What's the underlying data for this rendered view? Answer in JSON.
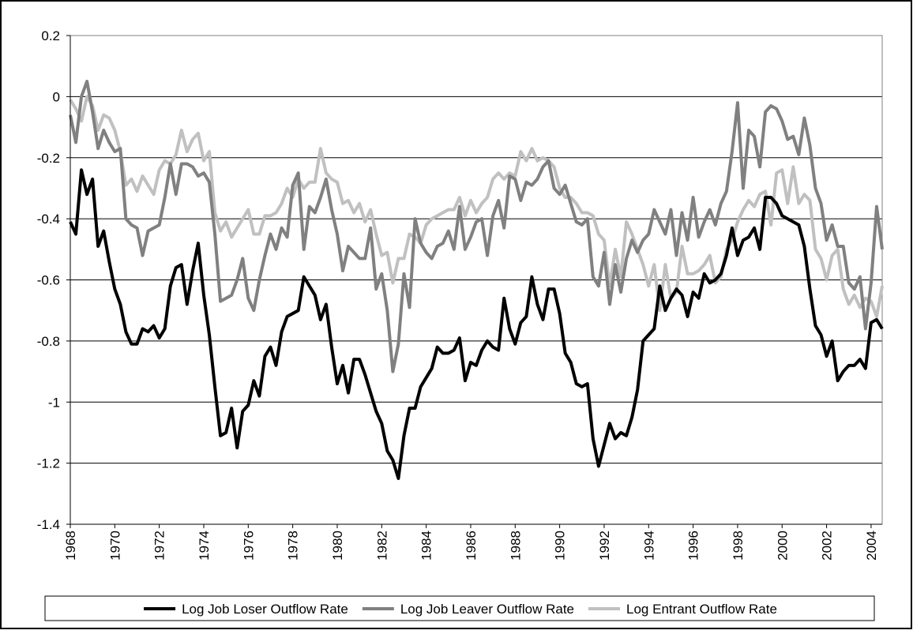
{
  "chart_data": {
    "type": "line",
    "x": [
      1968,
      1968.25,
      1968.5,
      1968.75,
      1969,
      1969.25,
      1969.5,
      1969.75,
      1970,
      1970.25,
      1970.5,
      1970.75,
      1971,
      1971.25,
      1971.5,
      1971.75,
      1972,
      1972.25,
      1972.5,
      1972.75,
      1973,
      1973.25,
      1973.5,
      1973.75,
      1974,
      1974.25,
      1974.5,
      1974.75,
      1975,
      1975.25,
      1975.5,
      1975.75,
      1976,
      1976.25,
      1976.5,
      1976.75,
      1977,
      1977.25,
      1977.5,
      1977.75,
      1978,
      1978.25,
      1978.5,
      1978.75,
      1979,
      1979.25,
      1979.5,
      1979.75,
      1980,
      1980.25,
      1980.5,
      1980.75,
      1981,
      1981.25,
      1981.5,
      1981.75,
      1982,
      1982.25,
      1982.5,
      1982.75,
      1983,
      1983.25,
      1983.5,
      1983.75,
      1984,
      1984.25,
      1984.5,
      1984.75,
      1985,
      1985.25,
      1985.5,
      1985.75,
      1986,
      1986.25,
      1986.5,
      1986.75,
      1987,
      1987.25,
      1987.5,
      1987.75,
      1988,
      1988.25,
      1988.5,
      1988.75,
      1989,
      1989.25,
      1989.5,
      1989.75,
      1990,
      1990.25,
      1990.5,
      1990.75,
      1991,
      1991.25,
      1991.5,
      1991.75,
      1992,
      1992.25,
      1992.5,
      1992.75,
      1993,
      1993.25,
      1993.5,
      1993.75,
      1994,
      1994.25,
      1994.5,
      1994.75,
      1995,
      1995.25,
      1995.5,
      1995.75,
      1996,
      1996.25,
      1996.5,
      1996.75,
      1997,
      1997.25,
      1997.5,
      1997.75,
      1998,
      1998.25,
      1998.5,
      1998.75,
      1999,
      1999.25,
      1999.5,
      1999.75,
      2000,
      2000.25,
      2000.5,
      2000.75,
      2001,
      2001.25,
      2001.5,
      2001.75,
      2002,
      2002.25,
      2002.5,
      2002.75,
      2003,
      2003.25,
      2003.5,
      2003.75,
      2004,
      2004.25,
      2004.5
    ],
    "series": [
      {
        "name": "Log Job Loser Outflow Rate",
        "color": "#000000",
        "values": [
          -0.41,
          -0.45,
          -0.24,
          -0.32,
          -0.27,
          -0.49,
          -0.44,
          -0.54,
          -0.63,
          -0.68,
          -0.77,
          -0.81,
          -0.81,
          -0.76,
          -0.77,
          -0.75,
          -0.79,
          -0.76,
          -0.62,
          -0.56,
          -0.55,
          -0.68,
          -0.57,
          -0.48,
          -0.65,
          -0.78,
          -0.95,
          -1.11,
          -1.1,
          -1.02,
          -1.15,
          -1.03,
          -1.01,
          -0.93,
          -0.98,
          -0.85,
          -0.82,
          -0.88,
          -0.77,
          -0.72,
          -0.71,
          -0.7,
          -0.59,
          -0.62,
          -0.65,
          -0.73,
          -0.68,
          -0.82,
          -0.94,
          -0.88,
          -0.97,
          -0.86,
          -0.86,
          -0.91,
          -0.97,
          -1.03,
          -1.07,
          -1.16,
          -1.19,
          -1.25,
          -1.11,
          -1.02,
          -1.02,
          -0.95,
          -0.92,
          -0.89,
          -0.82,
          -0.84,
          -0.84,
          -0.83,
          -0.79,
          -0.93,
          -0.87,
          -0.88,
          -0.83,
          -0.8,
          -0.82,
          -0.83,
          -0.66,
          -0.76,
          -0.81,
          -0.74,
          -0.72,
          -0.59,
          -0.68,
          -0.73,
          -0.63,
          -0.63,
          -0.71,
          -0.84,
          -0.87,
          -0.94,
          -0.95,
          -0.94,
          -1.12,
          -1.21,
          -1.14,
          -1.07,
          -1.12,
          -1.1,
          -1.11,
          -1.05,
          -0.96,
          -0.8,
          -0.78,
          -0.76,
          -0.62,
          -0.7,
          -0.66,
          -0.63,
          -0.65,
          -0.72,
          -0.64,
          -0.66,
          -0.58,
          -0.61,
          -0.6,
          -0.58,
          -0.52,
          -0.43,
          -0.52,
          -0.47,
          -0.46,
          -0.43,
          -0.5,
          -0.33,
          -0.33,
          -0.35,
          -0.39,
          -0.4,
          -0.41,
          -0.42,
          -0.49,
          -0.63,
          -0.75,
          -0.78,
          -0.85,
          -0.8,
          -0.93,
          -0.9,
          -0.88,
          -0.88,
          -0.86,
          -0.89,
          -0.74,
          -0.73,
          -0.76
        ]
      },
      {
        "name": "Log Job Leaver Outflow Rate",
        "color": "#808080",
        "values": [
          -0.06,
          -0.15,
          0.0,
          0.05,
          -0.05,
          -0.17,
          -0.11,
          -0.15,
          -0.18,
          -0.17,
          -0.4,
          -0.42,
          -0.43,
          -0.52,
          -0.44,
          -0.43,
          -0.42,
          -0.33,
          -0.22,
          -0.32,
          -0.22,
          -0.22,
          -0.23,
          -0.26,
          -0.25,
          -0.28,
          -0.45,
          -0.67,
          -0.66,
          -0.65,
          -0.6,
          -0.53,
          -0.66,
          -0.7,
          -0.6,
          -0.52,
          -0.45,
          -0.5,
          -0.43,
          -0.46,
          -0.29,
          -0.25,
          -0.5,
          -0.36,
          -0.38,
          -0.33,
          -0.27,
          -0.37,
          -0.45,
          -0.57,
          -0.49,
          -0.51,
          -0.53,
          -0.53,
          -0.43,
          -0.63,
          -0.58,
          -0.7,
          -0.9,
          -0.81,
          -0.58,
          -0.69,
          -0.4,
          -0.48,
          -0.51,
          -0.53,
          -0.49,
          -0.48,
          -0.44,
          -0.5,
          -0.36,
          -0.5,
          -0.46,
          -0.41,
          -0.4,
          -0.52,
          -0.39,
          -0.34,
          -0.43,
          -0.26,
          -0.27,
          -0.34,
          -0.28,
          -0.29,
          -0.27,
          -0.23,
          -0.21,
          -0.3,
          -0.32,
          -0.29,
          -0.35,
          -0.41,
          -0.42,
          -0.4,
          -0.59,
          -0.62,
          -0.51,
          -0.68,
          -0.55,
          -0.64,
          -0.53,
          -0.47,
          -0.51,
          -0.47,
          -0.45,
          -0.37,
          -0.41,
          -0.45,
          -0.37,
          -0.52,
          -0.38,
          -0.47,
          -0.33,
          -0.46,
          -0.41,
          -0.37,
          -0.42,
          -0.35,
          -0.31,
          -0.18,
          -0.02,
          -0.3,
          -0.11,
          -0.13,
          -0.23,
          -0.05,
          -0.03,
          -0.04,
          -0.08,
          -0.14,
          -0.13,
          -0.19,
          -0.07,
          -0.16,
          -0.3,
          -0.35,
          -0.47,
          -0.42,
          -0.49,
          -0.49,
          -0.61,
          -0.63,
          -0.59,
          -0.76,
          -0.61,
          -0.36,
          -0.5
        ]
      },
      {
        "name": "Log Entrant Outflow Rate",
        "color": "#c0c0c0",
        "values": [
          -0.01,
          -0.04,
          -0.08,
          0.0,
          -0.03,
          -0.11,
          -0.06,
          -0.07,
          -0.11,
          -0.18,
          -0.29,
          -0.27,
          -0.31,
          -0.26,
          -0.29,
          -0.32,
          -0.24,
          -0.21,
          -0.22,
          -0.19,
          -0.11,
          -0.18,
          -0.14,
          -0.12,
          -0.21,
          -0.18,
          -0.38,
          -0.44,
          -0.41,
          -0.46,
          -0.43,
          -0.4,
          -0.37,
          -0.45,
          -0.45,
          -0.39,
          -0.39,
          -0.38,
          -0.35,
          -0.3,
          -0.33,
          -0.27,
          -0.3,
          -0.28,
          -0.28,
          -0.17,
          -0.25,
          -0.27,
          -0.28,
          -0.35,
          -0.34,
          -0.38,
          -0.35,
          -0.41,
          -0.37,
          -0.45,
          -0.52,
          -0.51,
          -0.61,
          -0.53,
          -0.53,
          -0.45,
          -0.46,
          -0.48,
          -0.42,
          -0.4,
          -0.39,
          -0.38,
          -0.37,
          -0.37,
          -0.33,
          -0.39,
          -0.34,
          -0.38,
          -0.35,
          -0.33,
          -0.27,
          -0.25,
          -0.27,
          -0.25,
          -0.26,
          -0.18,
          -0.21,
          -0.17,
          -0.21,
          -0.2,
          -0.21,
          -0.23,
          -0.3,
          -0.33,
          -0.33,
          -0.35,
          -0.38,
          -0.38,
          -0.39,
          -0.45,
          -0.47,
          -0.62,
          -0.5,
          -0.59,
          -0.41,
          -0.45,
          -0.5,
          -0.55,
          -0.62,
          -0.55,
          -0.7,
          -0.55,
          -0.66,
          -0.64,
          -0.49,
          -0.58,
          -0.58,
          -0.57,
          -0.55,
          -0.52,
          -0.61,
          -0.59,
          -0.5,
          -0.47,
          -0.41,
          -0.37,
          -0.34,
          -0.36,
          -0.32,
          -0.31,
          -0.42,
          -0.25,
          -0.24,
          -0.35,
          -0.23,
          -0.35,
          -0.32,
          -0.34,
          -0.5,
          -0.53,
          -0.6,
          -0.52,
          -0.5,
          -0.63,
          -0.68,
          -0.65,
          -0.69,
          -0.66,
          -0.67,
          -0.72,
          -0.62
        ]
      }
    ],
    "xlim": [
      1968,
      2004.5
    ],
    "xticks": [
      1968,
      1970,
      1972,
      1974,
      1976,
      1978,
      1980,
      1982,
      1984,
      1986,
      1988,
      1990,
      1992,
      1994,
      1996,
      1998,
      2000,
      2002,
      2004
    ],
    "ylim": [
      -1.4,
      0.2
    ],
    "yticks": [
      0.2,
      0,
      -0.2,
      -0.4,
      -0.6,
      -0.8,
      -1,
      -1.2,
      -1.4
    ],
    "grid": true,
    "legend": "bottom"
  }
}
